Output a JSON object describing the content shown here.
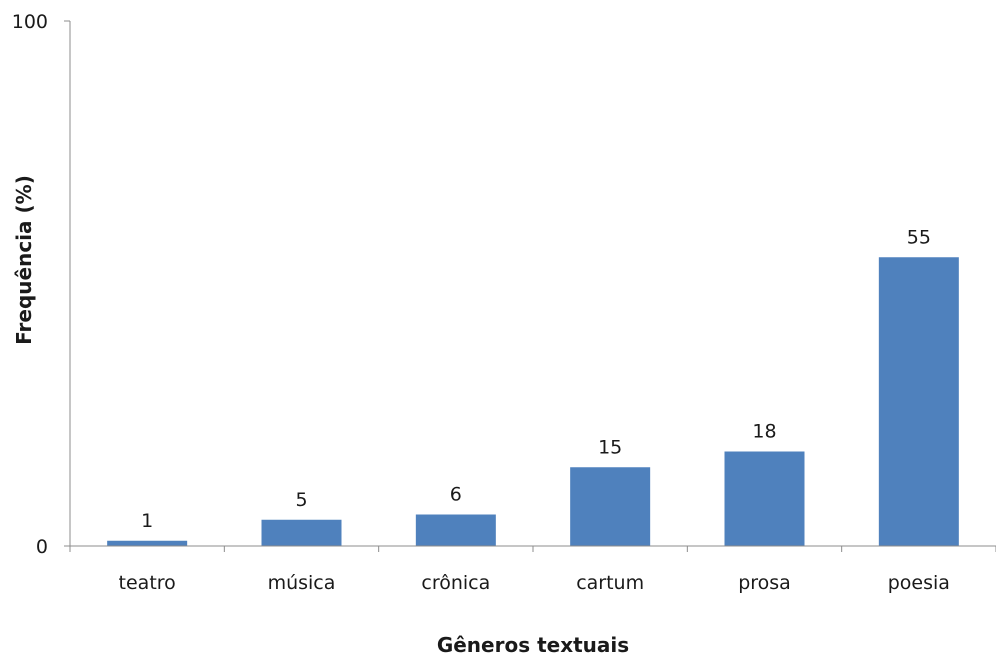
{
  "chart_data": {
    "type": "bar",
    "title": "",
    "xlabel": "Gêneros textuais",
    "ylabel": "Frequência (%)",
    "categories": [
      "teatro",
      "música",
      "crônica",
      "cartum",
      "prosa",
      "poesia"
    ],
    "values": [
      1,
      5,
      6,
      15,
      18,
      55
    ],
    "data_labels": [
      "1",
      "5",
      "6",
      "15",
      "18",
      "55"
    ],
    "ylim": [
      0,
      100
    ],
    "yticks": [
      "0",
      "100"
    ],
    "bar_color": "#4f81bd",
    "grid": false,
    "legend": "none"
  }
}
